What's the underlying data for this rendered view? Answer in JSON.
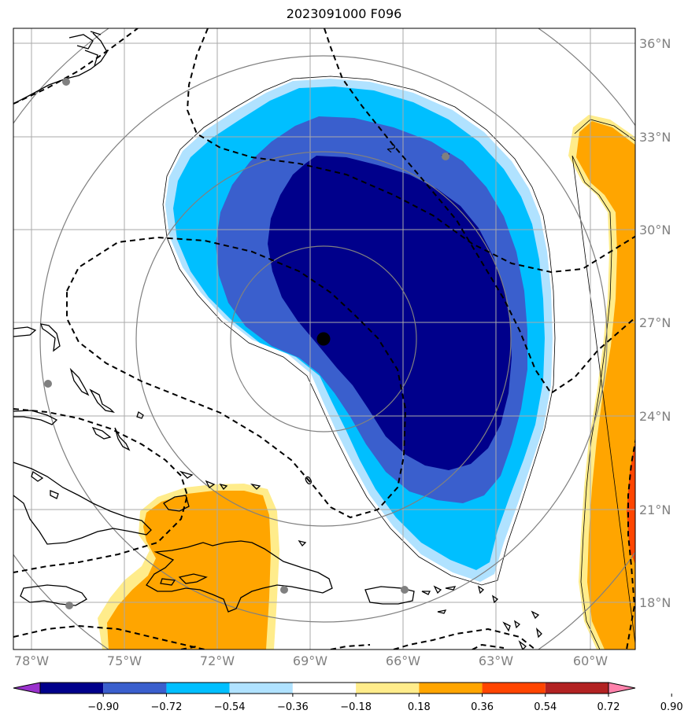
{
  "title": "2023091000 F096",
  "map": {
    "lon_labels": [
      "78°W",
      "75°W",
      "72°W",
      "69°W",
      "66°W",
      "63°W",
      "60°W"
    ],
    "lat_labels": [
      "36°N",
      "33°N",
      "30°N",
      "27°N",
      "24°N",
      "21°N",
      "18°N"
    ],
    "contour_labels": [
      "2",
      "0"
    ],
    "center_marker": "storm-center",
    "colors": {
      "deep_blue": "#00008b",
      "royal_blue": "#3a5fcd",
      "sky_blue": "#00bfff",
      "light_blue": "#b0e2ff",
      "light_yellow": "#ffec8b",
      "orange": "#ffa500"
    }
  },
  "colorbar": {
    "colors": [
      "#9a32cd",
      "#00008b",
      "#3a5fcd",
      "#00bfff",
      "#b0e2ff",
      "#ffffff",
      "#ffec8b",
      "#ffa500",
      "#ff4500",
      "#b22222",
      "#ff82ab"
    ],
    "ticks": [
      "−0.90",
      "−0.72",
      "−0.54",
      "−0.36",
      "−0.18",
      "0.18",
      "0.36",
      "0.54",
      "0.72",
      "0.90"
    ]
  }
}
